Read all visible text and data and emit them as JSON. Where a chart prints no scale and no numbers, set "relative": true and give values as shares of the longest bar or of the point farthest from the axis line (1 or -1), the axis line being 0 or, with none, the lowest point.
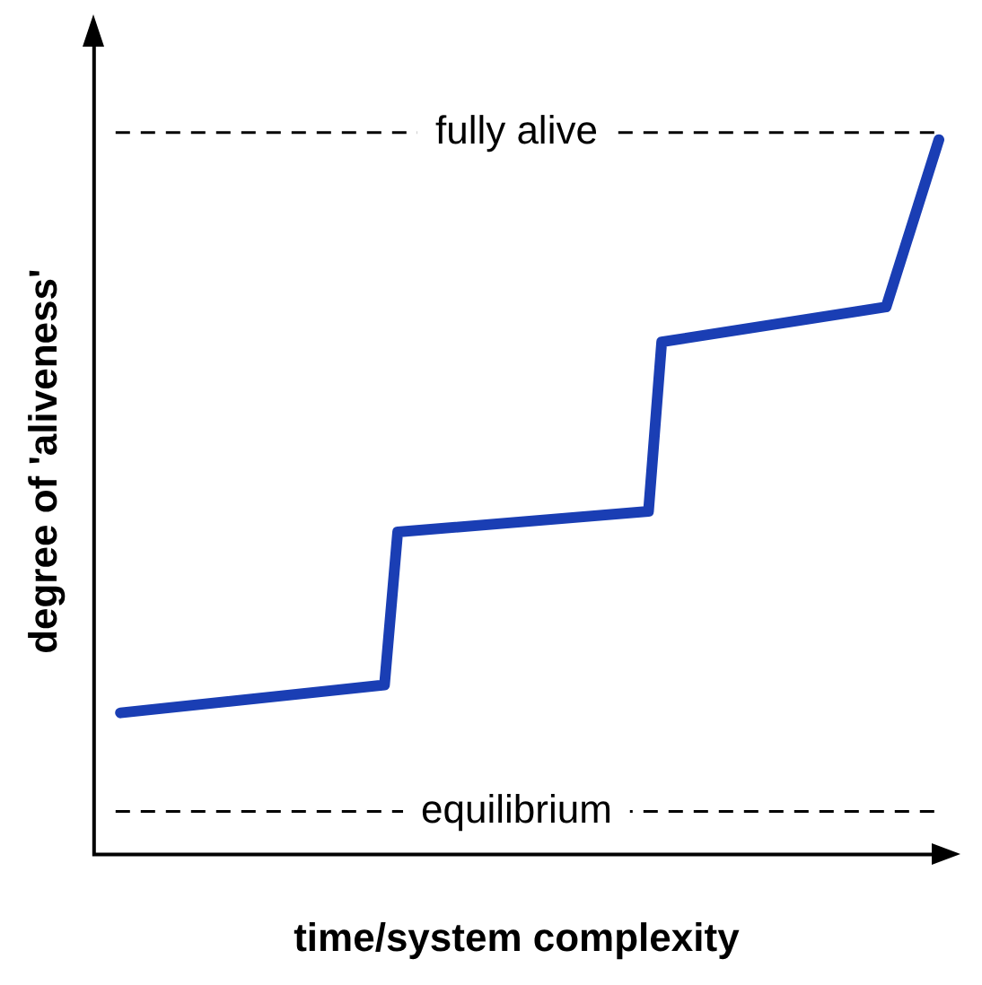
{
  "chart_data": {
    "type": "line",
    "relative": true,
    "xlabel": "time/system complexity",
    "ylabel": "degree of 'aliveness'",
    "grid": false,
    "legend": false,
    "marker": "none",
    "line_style": "solid",
    "categories": [
      null,
      null,
      null,
      null,
      null,
      null,
      null,
      null,
      null,
      null,
      null,
      null,
      null,
      null,
      null,
      null,
      null,
      null,
      null,
      null,
      null,
      null,
      null,
      null,
      null,
      null,
      null,
      null,
      null,
      null,
      null,
      null,
      null,
      null,
      null,
      null,
      null,
      null,
      null,
      null,
      null,
      null,
      null,
      null,
      null,
      null,
      null,
      null,
      null,
      null,
      null,
      null,
      null,
      null,
      null,
      null,
      null,
      null,
      null,
      null,
      null,
      null,
      null,
      null,
      null
    ],
    "series": [
      {
        "color": "#1a3eb4",
        "values": [
          null,
          null,
          0.198,
          null,
          null,
          null,
          null,
          null,
          null,
          null,
          null,
          null,
          null,
          null,
          null,
          null,
          null,
          null,
          null,
          null,
          null,
          null,
          0.237,
          0.451,
          null,
          null,
          null,
          null,
          null,
          null,
          null,
          null,
          null,
          null,
          null,
          null,
          null,
          null,
          null,
          null,
          null,
          null,
          0.48,
          0.717,
          null,
          null,
          null,
          null,
          null,
          null,
          null,
          null,
          null,
          null,
          null,
          null,
          null,
          null,
          null,
          null,
          0.766,
          null,
          null,
          null,
          1.0
        ]
      }
    ],
    "ref_lines": [
      {
        "axis": "y",
        "value": 1.01,
        "label": "fully alive",
        "color": "#000000",
        "line_style": "dashed"
      },
      {
        "axis": "y",
        "value": 0.06,
        "label": "equilibrium",
        "color": "#000000",
        "line_style": "dashed"
      }
    ]
  }
}
